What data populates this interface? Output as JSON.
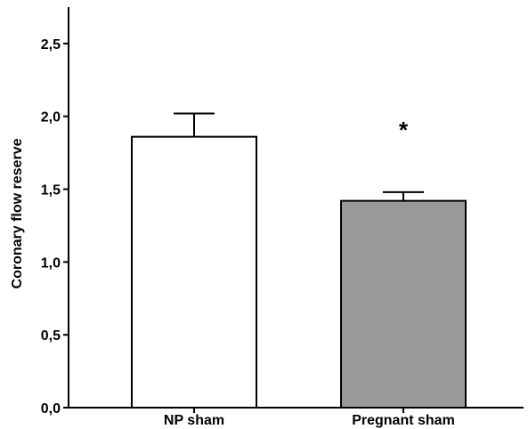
{
  "chart_data": {
    "type": "bar",
    "title": "",
    "xlabel": "",
    "ylabel": "Coronary flow reserve",
    "categories": [
      "NP sham",
      "Pregnant sham"
    ],
    "values": [
      1.86,
      1.42
    ],
    "errors": [
      0.16,
      0.06
    ],
    "colors": [
      "#ffffff",
      "#999999"
    ],
    "ylim": [
      0,
      2.75
    ],
    "yticks": [
      0.0,
      0.5,
      1.0,
      1.5,
      2.0,
      2.5
    ],
    "ytick_labels": [
      "0,0",
      "0,5",
      "1,0",
      "1,5",
      "2,0",
      "2,5"
    ],
    "annotations": [
      {
        "category": "Pregnant sham",
        "text": "*"
      }
    ],
    "grid": false,
    "legend": "none"
  }
}
